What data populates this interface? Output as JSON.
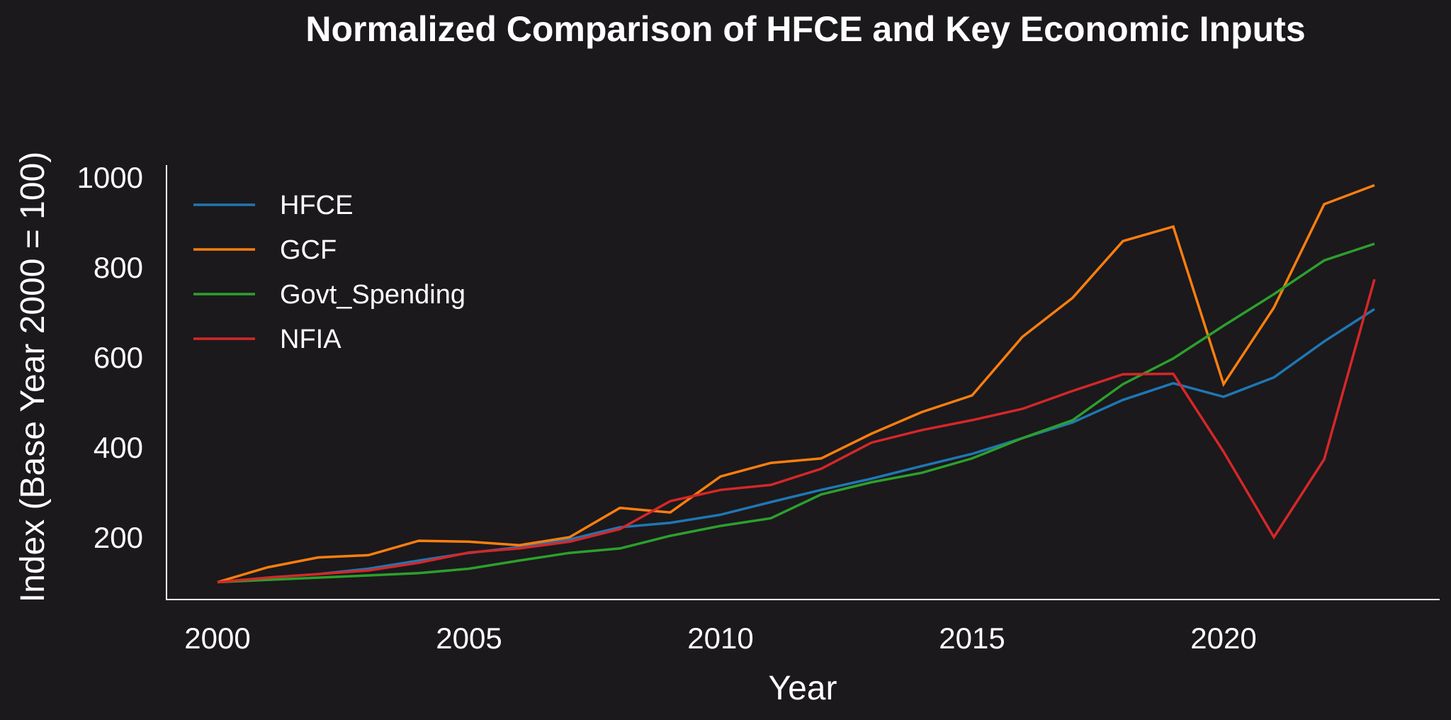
{
  "chart_data": {
    "type": "line",
    "title": "Normalized Comparison of HFCE and Key Economic Inputs",
    "xlabel": "Year",
    "ylabel": "Index (Base Year 2000 = 100)",
    "x": [
      2000,
      2001,
      2002,
      2003,
      2004,
      2005,
      2006,
      2007,
      2008,
      2009,
      2010,
      2011,
      2012,
      2013,
      2014,
      2015,
      2016,
      2017,
      2018,
      2019,
      2020,
      2021,
      2022,
      2023
    ],
    "xlim": [
      1998.8,
      2024.2
    ],
    "ylim": [
      60,
      1020
    ],
    "xticks": [
      2000,
      2005,
      2010,
      2015,
      2020
    ],
    "xtick_labels": [
      "2000",
      "2005",
      "2010",
      "2015",
      "2020"
    ],
    "yticks": [
      200,
      400,
      600,
      800,
      1000
    ],
    "ytick_labels": [
      "200",
      "400",
      "600",
      "800",
      "1000"
    ],
    "grid": false,
    "legend_position": "top-left",
    "series": [
      {
        "name": "HFCE",
        "color": "#1f77b4",
        "values": [
          100,
          110,
          118,
          130,
          148,
          165,
          178,
          195,
          222,
          232,
          250,
          278,
          305,
          330,
          358,
          385,
          420,
          455,
          505,
          542,
          512,
          555,
          635,
          707
        ]
      },
      {
        "name": "GCF",
        "color": "#ff7f0e",
        "values": [
          100,
          133,
          155,
          160,
          192,
          190,
          182,
          200,
          265,
          255,
          335,
          365,
          375,
          430,
          478,
          515,
          645,
          732,
          858,
          890,
          540,
          710,
          940,
          982
        ]
      },
      {
        "name": "Govt_Spending",
        "color": "#2ca02c",
        "values": [
          100,
          105,
          110,
          115,
          120,
          130,
          148,
          165,
          175,
          203,
          225,
          242,
          295,
          322,
          343,
          375,
          420,
          460,
          540,
          597,
          670,
          740,
          815,
          852
        ]
      },
      {
        "name": "NFIA",
        "color": "#d62728",
        "values": [
          100,
          110,
          118,
          126,
          143,
          166,
          175,
          190,
          218,
          280,
          305,
          316,
          352,
          410,
          438,
          460,
          485,
          525,
          562,
          563,
          390,
          200,
          373,
          773
        ]
      }
    ]
  }
}
